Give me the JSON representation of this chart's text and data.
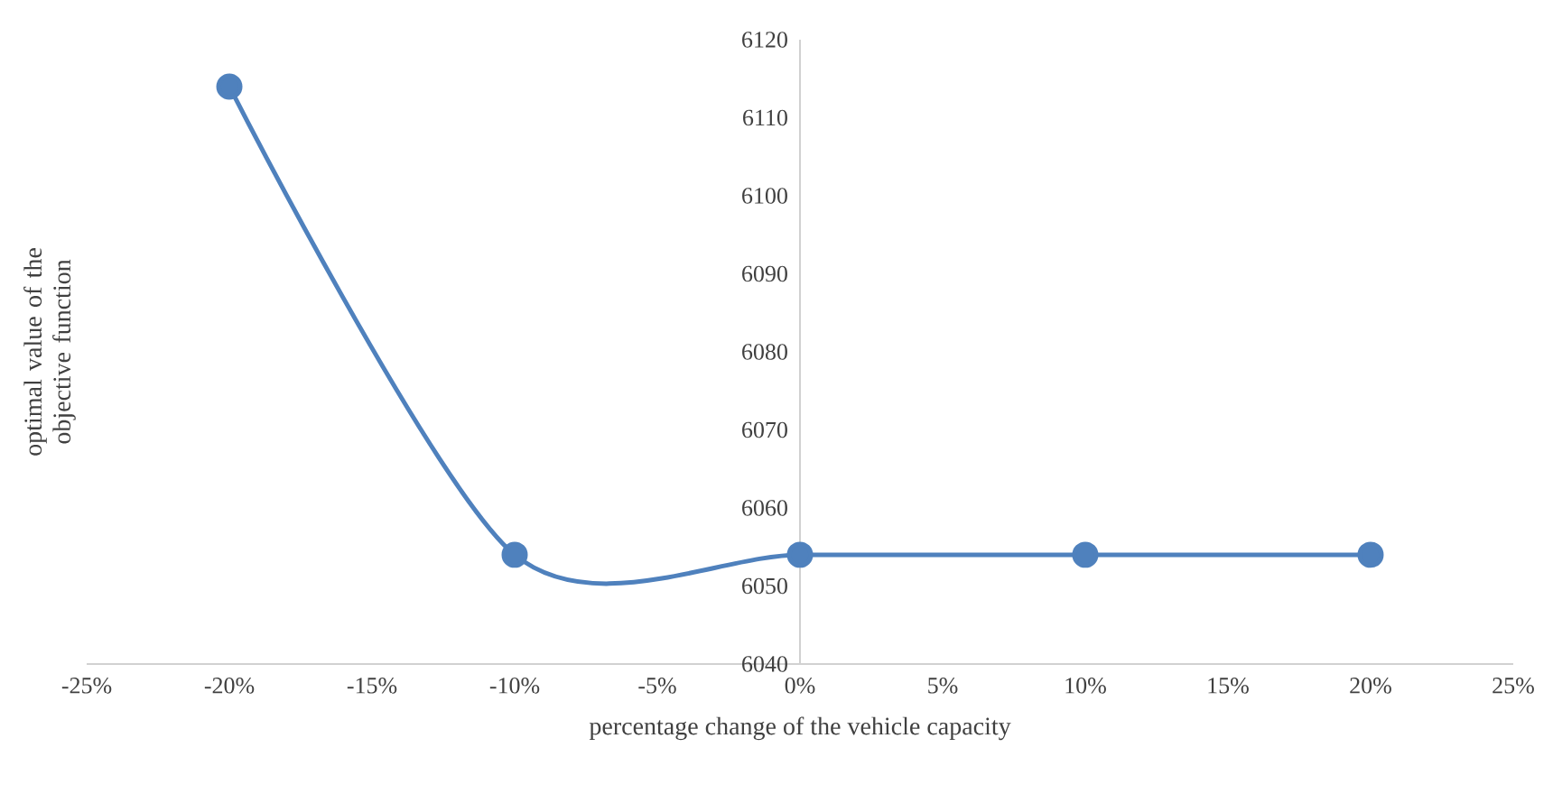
{
  "chart_data": {
    "type": "line",
    "xlabel": "percentage change of the vehicle capacity",
    "ylabel": "optimal value of the objective function",
    "x": [
      -20,
      -10,
      0,
      10,
      20
    ],
    "series": [
      {
        "color": "#4f81bd",
        "values": [
          6114,
          6054,
          6054,
          6054,
          6054
        ]
      }
    ],
    "marker": "circle",
    "line_style": "solid",
    "xlim": [
      -25,
      25
    ],
    "xticks": [
      {
        "value": -25,
        "label": "-25%"
      },
      {
        "value": -20,
        "label": "-20%"
      },
      {
        "value": -15,
        "label": "-15%"
      },
      {
        "value": -10,
        "label": "-10%"
      },
      {
        "value": -5,
        "label": "-5%"
      },
      {
        "value": 0,
        "label": "0%"
      },
      {
        "value": 5,
        "label": "5%"
      },
      {
        "value": 10,
        "label": "10%"
      },
      {
        "value": 15,
        "label": "15%"
      },
      {
        "value": 20,
        "label": "20%"
      },
      {
        "value": 25,
        "label": "25%"
      }
    ],
    "ylim": [
      6040,
      6120
    ],
    "yticks": [
      6040,
      6050,
      6060,
      6070,
      6080,
      6090,
      6100,
      6110,
      6120
    ]
  }
}
